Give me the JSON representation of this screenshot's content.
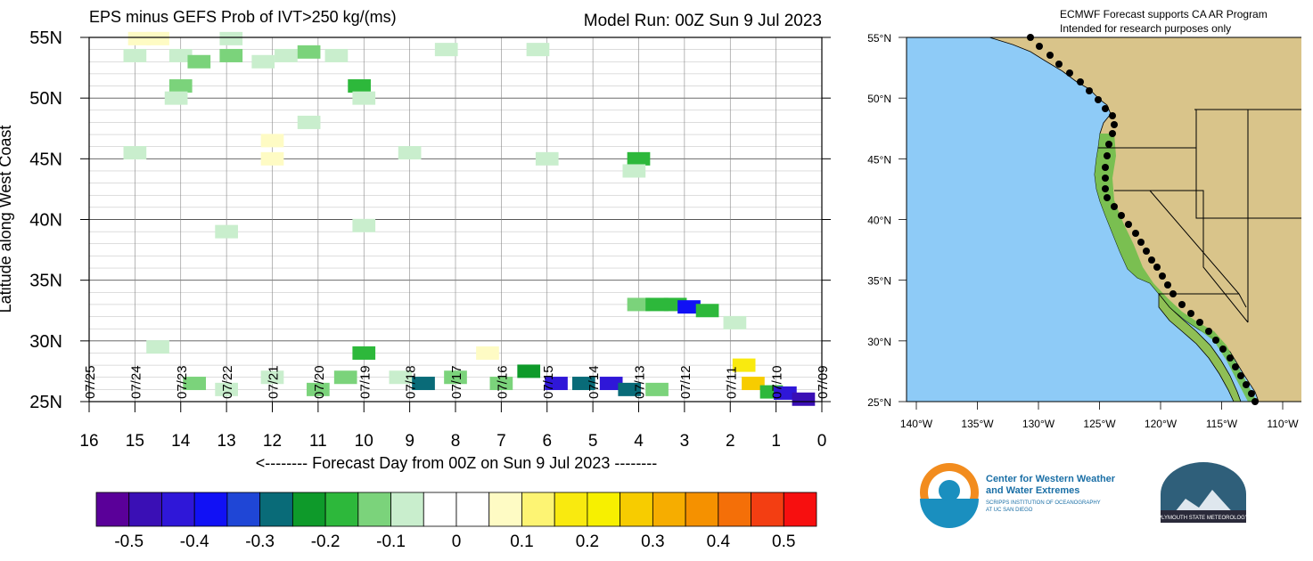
{
  "chart_data": [
    {
      "type": "heatmap",
      "title": "EPS minus GEFS Prob of IVT>250 kg/(ms)",
      "subtitle": "Model Run: 00Z Sun 9 Jul 2023",
      "xlabel": "<-------- Forecast Day from 00Z on Sun 9 Jul 2023 --------",
      "ylabel": "Latitude along West Coast",
      "xlim": [
        16,
        0
      ],
      "ylim": [
        25,
        55
      ],
      "x_ticks": [
        "16",
        "15",
        "14",
        "13",
        "12",
        "11",
        "10",
        "9",
        "8",
        "7",
        "6",
        "5",
        "4",
        "3",
        "2",
        "1",
        "0"
      ],
      "y_ticks": [
        "25N",
        "30N",
        "35N",
        "40N",
        "45N",
        "50N",
        "55N"
      ],
      "date_labels": [
        "07/25",
        "07/24",
        "07/23",
        "07/22",
        "07/21",
        "07/20",
        "07/19",
        "07/18",
        "07/17",
        "07/16",
        "07/15",
        "07/14",
        "07/13",
        "07/12",
        "07/11",
        "07/10",
        "07/09"
      ],
      "grid": true,
      "colorbar": {
        "labels": [
          "-0.5",
          "-0.4",
          "-0.3",
          "-0.2",
          "-0.1",
          "0",
          "0.1",
          "0.2",
          "0.3",
          "0.4",
          "0.5"
        ],
        "colors": [
          "#5a0099",
          "#3a0fb5",
          "#2f17d8",
          "#1111f5",
          "#1f46d6",
          "#096b78",
          "#0e9a2a",
          "#2db83b",
          "#7bd37b",
          "#c9eecd",
          "#ffffff",
          "#ffffff",
          "#fefbc4",
          "#fdf473",
          "#f9ea0f",
          "#f7f000",
          "#f7cc00",
          "#f6ad00",
          "#f59100",
          "#f46f08",
          "#f33e12",
          "#f70f0f"
        ]
      },
      "cells": [
        {
          "day": 14.9,
          "lat": 54.9,
          "v": 0.1
        },
        {
          "day": 14.5,
          "lat": 54.9,
          "v": 0.1
        },
        {
          "day": 12.9,
          "lat": 54.9,
          "v": -0.1
        },
        {
          "day": 15.0,
          "lat": 53.5,
          "v": -0.1
        },
        {
          "day": 14.0,
          "lat": 53.5,
          "v": -0.1
        },
        {
          "day": 13.6,
          "lat": 53.0,
          "v": -0.15
        },
        {
          "day": 12.9,
          "lat": 53.5,
          "v": -0.15
        },
        {
          "day": 12.2,
          "lat": 53.0,
          "v": -0.1
        },
        {
          "day": 11.7,
          "lat": 53.5,
          "v": -0.1
        },
        {
          "day": 11.2,
          "lat": 53.8,
          "v": -0.15
        },
        {
          "day": 10.6,
          "lat": 53.5,
          "v": -0.1
        },
        {
          "day": 8.2,
          "lat": 54.0,
          "v": -0.1
        },
        {
          "day": 6.2,
          "lat": 54.0,
          "v": -0.1
        },
        {
          "day": 14.0,
          "lat": 51.0,
          "v": -0.15
        },
        {
          "day": 10.1,
          "lat": 51.0,
          "v": -0.2
        },
        {
          "day": 14.1,
          "lat": 50.0,
          "v": -0.1
        },
        {
          "day": 10.0,
          "lat": 50.0,
          "v": -0.1
        },
        {
          "day": 11.2,
          "lat": 48.0,
          "v": -0.1
        },
        {
          "day": 12.0,
          "lat": 46.5,
          "v": 0.1
        },
        {
          "day": 12.0,
          "lat": 45.0,
          "v": 0.1
        },
        {
          "day": 15.0,
          "lat": 45.5,
          "v": -0.1
        },
        {
          "day": 9.0,
          "lat": 45.5,
          "v": -0.1
        },
        {
          "day": 6.0,
          "lat": 45.0,
          "v": -0.1
        },
        {
          "day": 4.0,
          "lat": 45.0,
          "v": -0.2
        },
        {
          "day": 4.1,
          "lat": 44.0,
          "v": -0.1
        },
        {
          "day": 13.0,
          "lat": 39.0,
          "v": -0.1
        },
        {
          "day": 10.0,
          "lat": 39.5,
          "v": -0.1
        },
        {
          "day": 4.0,
          "lat": 33.0,
          "v": -0.15
        },
        {
          "day": 3.6,
          "lat": 33.0,
          "v": -0.2
        },
        {
          "day": 3.2,
          "lat": 33.0,
          "v": -0.2
        },
        {
          "day": 2.9,
          "lat": 32.8,
          "v": -0.4
        },
        {
          "day": 2.5,
          "lat": 32.5,
          "v": -0.2
        },
        {
          "day": 1.9,
          "lat": 31.5,
          "v": -0.1
        },
        {
          "day": 14.5,
          "lat": 29.5,
          "v": -0.1
        },
        {
          "day": 13.7,
          "lat": 26.5,
          "v": -0.15
        },
        {
          "day": 13.0,
          "lat": 26.0,
          "v": -0.1
        },
        {
          "day": 12.0,
          "lat": 27.0,
          "v": -0.1
        },
        {
          "day": 11.0,
          "lat": 26.0,
          "v": -0.15
        },
        {
          "day": 10.4,
          "lat": 27.0,
          "v": -0.15
        },
        {
          "day": 10.0,
          "lat": 29.0,
          "v": -0.2
        },
        {
          "day": 9.2,
          "lat": 27.0,
          "v": -0.1
        },
        {
          "day": 8.7,
          "lat": 26.5,
          "v": -0.3
        },
        {
          "day": 8.0,
          "lat": 27.0,
          "v": -0.15
        },
        {
          "day": 7.3,
          "lat": 29.0,
          "v": 0.1
        },
        {
          "day": 7.0,
          "lat": 26.5,
          "v": -0.15
        },
        {
          "day": 6.4,
          "lat": 27.5,
          "v": -0.25
        },
        {
          "day": 5.8,
          "lat": 26.5,
          "v": -0.45
        },
        {
          "day": 5.2,
          "lat": 26.5,
          "v": -0.3
        },
        {
          "day": 4.6,
          "lat": 26.5,
          "v": -0.45
        },
        {
          "day": 4.2,
          "lat": 26.0,
          "v": -0.3
        },
        {
          "day": 3.6,
          "lat": 26.0,
          "v": -0.15
        },
        {
          "day": 1.7,
          "lat": 28.0,
          "v": 0.15
        },
        {
          "day": 1.5,
          "lat": 26.5,
          "v": 0.25
        },
        {
          "day": 1.1,
          "lat": 25.8,
          "v": -0.2
        },
        {
          "day": 0.8,
          "lat": 25.7,
          "v": -0.45
        },
        {
          "day": 0.4,
          "lat": 25.2,
          "v": -0.5
        }
      ]
    }
  ],
  "map": {
    "note": "ECMWF Forecast supports CA AR Program",
    "note2": "Intended for research purposes only",
    "lat_ticks": [
      "55°N",
      "50°N",
      "45°N",
      "40°N",
      "35°N",
      "30°N",
      "25°N"
    ],
    "lon_ticks": [
      "140°W",
      "135°W",
      "130°W",
      "125°W",
      "120°W",
      "115°W",
      "110°W"
    ],
    "ocean_color": "#8ecbf7"
  },
  "logos": {
    "cw3e_line1": "Center for Western Weather",
    "cw3e_line2": "and Water Extremes",
    "cw3e_line3": "SCRIPPS INSTITUTION OF OCEANOGRAPHY",
    "cw3e_line4": "AT UC SAN DIEGO",
    "psu_text": "PLYMOUTH STATE METEOROLOGY"
  }
}
